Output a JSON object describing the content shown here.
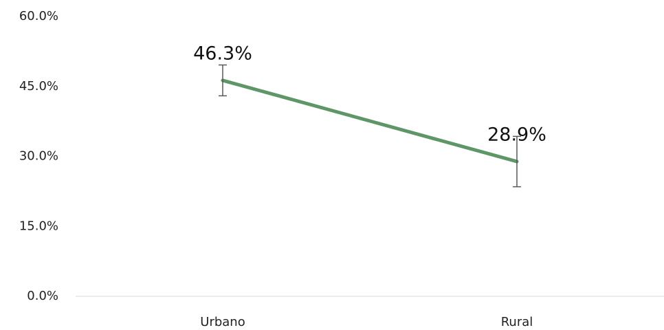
{
  "chart_data": {
    "type": "line",
    "categories": [
      "Urbano",
      "Rural"
    ],
    "values": [
      46.3,
      28.9
    ],
    "value_labels": [
      "46.3%",
      "28.9%"
    ],
    "errors": [
      3.3,
      5.4
    ],
    "color": "#5f9668",
    "error_color": "#595959",
    "ylim": [
      0,
      60
    ],
    "yticks": [
      {
        "value": 0,
        "label": "0.0%"
      },
      {
        "value": 15,
        "label": "15.0%"
      },
      {
        "value": 30,
        "label": "30.0%"
      },
      {
        "value": 45,
        "label": "45.0%"
      },
      {
        "value": 60,
        "label": "60.0%"
      }
    ],
    "grid": false
  }
}
